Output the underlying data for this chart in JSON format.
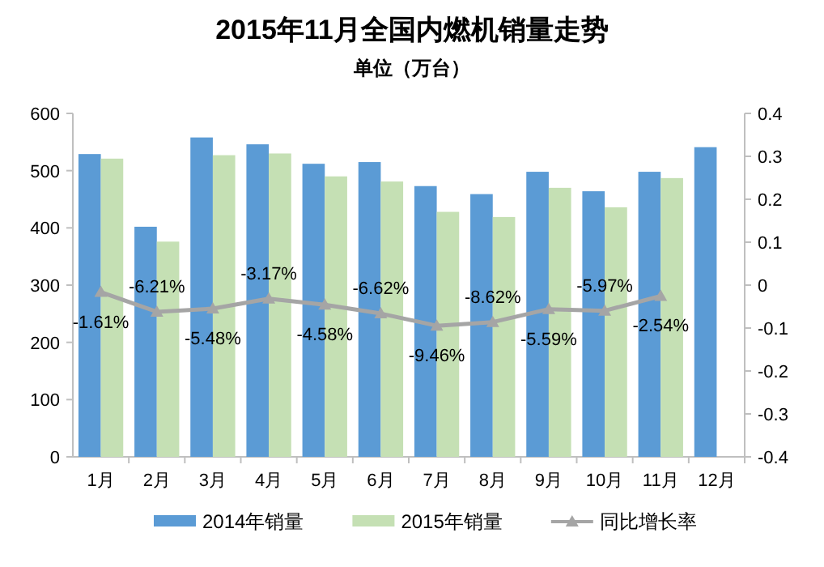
{
  "chart_data": {
    "type": "bar",
    "title": "2015年11月全国内燃机销量走势",
    "subtitle": "单位（万台）",
    "categories": [
      "1月",
      "2月",
      "3月",
      "4月",
      "5月",
      "6月",
      "7月",
      "8月",
      "9月",
      "10月",
      "11月",
      "12月"
    ],
    "series": [
      {
        "name": "2014年销量",
        "color": "#5b9bd5",
        "values": [
          529,
          402,
          558,
          546,
          512,
          515,
          473,
          459,
          498,
          464,
          498,
          541
        ]
      },
      {
        "name": "2015年销量",
        "color": "#c5e0b4",
        "values": [
          521,
          376,
          527,
          530,
          490,
          481,
          428,
          419,
          470,
          436,
          487,
          null
        ]
      },
      {
        "name": "同比增长率",
        "type": "line",
        "axis": "y2",
        "color": "#a5a5a5",
        "marker": "triangle",
        "values": [
          -0.0161,
          -0.0621,
          -0.0548,
          -0.0317,
          -0.0458,
          -0.0662,
          -0.0946,
          -0.0862,
          -0.0559,
          -0.0597,
          -0.0254,
          null
        ],
        "value_labels": [
          "-1.61%",
          "-6.21%",
          "-5.48%",
          "-3.17%",
          "-4.58%",
          "-6.62%",
          "-9.46%",
          "-8.62%",
          "-5.59%",
          "-5.97%",
          "-2.54%",
          null
        ]
      }
    ],
    "ylim": [
      0,
      600
    ],
    "yticks": [
      0,
      100,
      200,
      300,
      400,
      500,
      600
    ],
    "y2lim": [
      -0.4,
      0.4
    ],
    "y2ticks": [
      -0.4,
      -0.3,
      -0.2,
      -0.1,
      0,
      0.1,
      0.2,
      0.3,
      0.4
    ],
    "grid": false,
    "legend": "bottom"
  }
}
